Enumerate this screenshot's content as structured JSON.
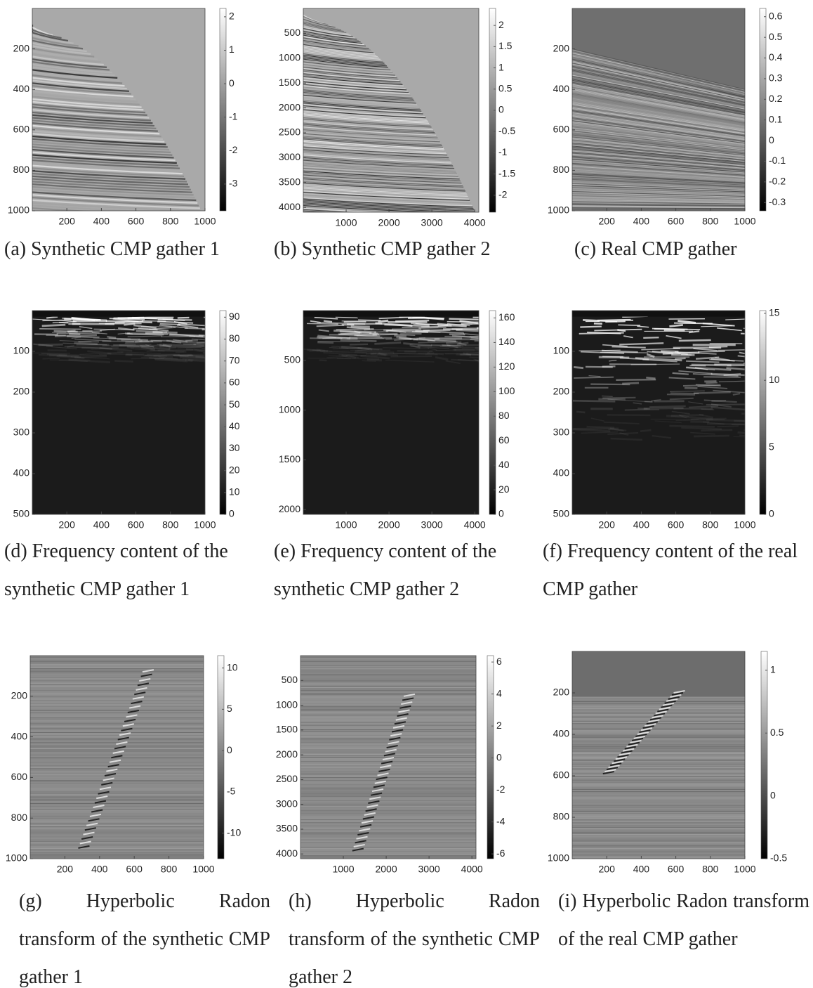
{
  "chart_data": [
    {
      "type": "image",
      "caption": "(a) Synthetic CMP gather 1",
      "xlim": [
        0,
        1000
      ],
      "xticks": [
        200,
        400,
        600,
        800,
        1000
      ],
      "ylim": [
        0,
        1000
      ],
      "yticks": [
        200,
        400,
        600,
        800,
        1000
      ],
      "clim": [
        -3.8,
        2.25
      ],
      "cticks": [
        2,
        1,
        0,
        -1,
        -2,
        -3
      ]
    },
    {
      "type": "image",
      "caption": "(b) Synthetic CMP gather 2",
      "xlim": [
        0,
        4096
      ],
      "xticks": [
        1000,
        2000,
        3000,
        4000
      ],
      "ylim": [
        0,
        4096
      ],
      "yticks": [
        500,
        1000,
        1500,
        2000,
        2500,
        3000,
        3500,
        4000
      ],
      "clim": [
        -2.4,
        2.4
      ],
      "cticks": [
        2,
        1.5,
        1,
        0.5,
        0,
        -0.5,
        -1,
        -1.5,
        -2
      ]
    },
    {
      "type": "image",
      "caption": "(c) Real CMP gather",
      "xlim": [
        0,
        1000
      ],
      "xticks": [
        200,
        400,
        600,
        800,
        1000
      ],
      "ylim": [
        0,
        1000
      ],
      "yticks": [
        200,
        400,
        600,
        800,
        1000
      ],
      "clim": [
        -0.34,
        0.64
      ],
      "cticks": [
        0.6,
        0.5,
        0.4,
        0.3,
        0.2,
        0.1,
        0,
        -0.1,
        -0.2,
        -0.3
      ]
    },
    {
      "type": "image",
      "caption": "(d) Frequency content of the synthetic CMP gather 1",
      "xlim": [
        0,
        1000
      ],
      "xticks": [
        200,
        400,
        600,
        800,
        1000
      ],
      "ylim": [
        0,
        500
      ],
      "yticks": [
        100,
        200,
        300,
        400,
        500
      ],
      "clim": [
        0,
        93
      ],
      "cticks": [
        90,
        80,
        70,
        60,
        50,
        40,
        30,
        20,
        10,
        0
      ]
    },
    {
      "type": "image",
      "caption": "(e) Frequency content of the synthetic CMP gather 2",
      "xlim": [
        0,
        4096
      ],
      "xticks": [
        1000,
        2000,
        3000,
        4000
      ],
      "ylim": [
        0,
        2048
      ],
      "yticks": [
        500,
        1000,
        1500,
        2000
      ],
      "clim": [
        0,
        166
      ],
      "cticks": [
        160,
        140,
        120,
        100,
        80,
        60,
        40,
        20,
        0
      ]
    },
    {
      "type": "image",
      "caption": "(f) Frequency content of the real CMP gather",
      "xlim": [
        0,
        1000
      ],
      "xticks": [
        200,
        400,
        600,
        800,
        1000
      ],
      "ylim": [
        0,
        500
      ],
      "yticks": [
        100,
        200,
        300,
        400,
        500
      ],
      "clim": [
        0,
        15.2
      ],
      "cticks": [
        15,
        10,
        5,
        0
      ]
    },
    {
      "type": "image",
      "caption": "(g) Hyperbolic Radon transform of the synthetic CMP gather 1",
      "xlim": [
        0,
        1000
      ],
      "xticks": [
        200,
        400,
        600,
        800,
        1000
      ],
      "ylim": [
        0,
        1000
      ],
      "yticks": [
        200,
        400,
        600,
        800,
        1000
      ],
      "clim": [
        -13.1,
        11.5
      ],
      "cticks": [
        10,
        5,
        0,
        -5,
        -10
      ]
    },
    {
      "type": "image",
      "caption": "(h) Hyperbolic Radon transform of the synthetic CMP gather 2",
      "xlim": [
        0,
        4096
      ],
      "xticks": [
        1000,
        2000,
        3000,
        4000
      ],
      "ylim": [
        0,
        4096
      ],
      "yticks": [
        500,
        1000,
        1500,
        2000,
        2500,
        3000,
        3500,
        4000
      ],
      "clim": [
        -6.3,
        6.4
      ],
      "cticks": [
        6,
        4,
        2,
        0,
        -2,
        -4,
        -6
      ]
    },
    {
      "type": "image",
      "caption": "(i) Hyperbolic Radon transform of the real CMP gather",
      "xlim": [
        0,
        1000
      ],
      "xticks": [
        200,
        400,
        600,
        800,
        1000
      ],
      "ylim": [
        0,
        1000
      ],
      "yticks": [
        200,
        400,
        600,
        800,
        1000
      ],
      "clim": [
        -0.5,
        1.15
      ],
      "cticks": [
        1,
        0.5,
        0,
        -0.5
      ]
    }
  ]
}
